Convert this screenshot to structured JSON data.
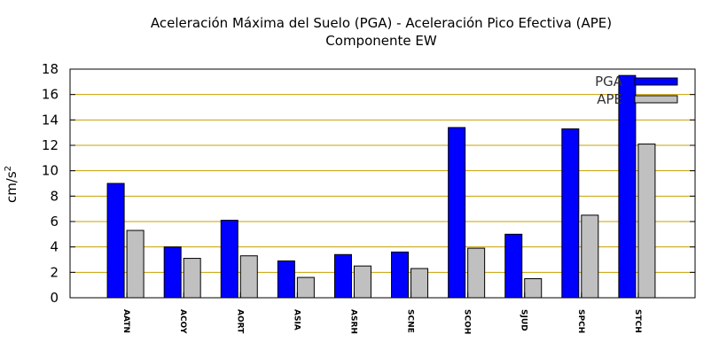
{
  "chart_data": {
    "type": "bar",
    "title": "Aceleración Máxima del Suelo (PGA) -  Aceleración Pico Efectiva (APE)",
    "subtitle": "Componente EW",
    "ylabel": "cm/s",
    "ylabel_superscript": "2",
    "xlabel": "",
    "ylim": [
      0,
      18
    ],
    "yticks": [
      "0",
      "2",
      "4",
      "6",
      "8",
      "10",
      "12",
      "14",
      "16",
      "18"
    ],
    "grid": "horizontal",
    "legend_position": "top-right",
    "categories": [
      "AATN",
      "ACOY",
      "AORT",
      "ASIA",
      "ASRH",
      "SCNE",
      "SCOH",
      "SJUD",
      "SPCH",
      "STCH"
    ],
    "series": [
      {
        "name": "PGA",
        "color": "#0000ff",
        "values": [
          9.0,
          4.0,
          6.1,
          2.9,
          3.4,
          3.6,
          13.4,
          5.0,
          13.3,
          17.5
        ]
      },
      {
        "name": "APE",
        "color": "#c0c0c0",
        "values": [
          5.3,
          3.1,
          3.3,
          1.6,
          2.5,
          2.3,
          3.9,
          1.5,
          6.5,
          12.1
        ]
      }
    ],
    "grid_color": "#c8a000"
  }
}
